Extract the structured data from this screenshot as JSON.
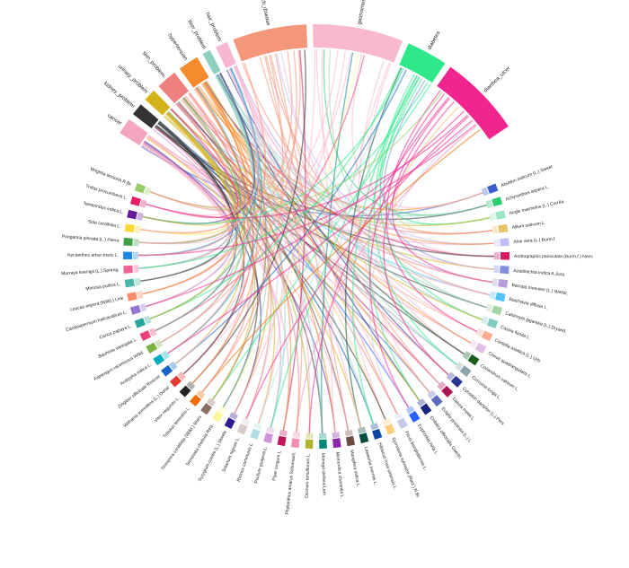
{
  "diseases": [
    {
      "label": "cancer",
      "color": "#f4a6c0",
      "degree": 4
    },
    {
      "label": "kidney_problem",
      "color": "#333333",
      "degree": 3
    },
    {
      "label": "urinary_problem",
      "color": "#d4b21a",
      "degree": 3
    },
    {
      "label": "skin_problem",
      "color": "#f08080",
      "degree": 5
    },
    {
      "label": "hypertension",
      "color": "#f58b2e",
      "degree": 5
    },
    {
      "label": "liver_problem",
      "color": "#8fcfc0",
      "degree": 2
    },
    {
      "label": "hair_problem",
      "color": "#f7b6d2",
      "degree": 3
    },
    {
      "label": "stomach_disease",
      "color": "#f4967a",
      "degree": 18
    },
    {
      "label": "gastrointestinal",
      "color": "#f9b8cc",
      "degree": 22
    },
    {
      "label": "diabetes",
      "color": "#2ee88a",
      "degree": 10
    },
    {
      "label": "diarrhea_ulcer",
      "color": "#f0268e",
      "degree": 20
    }
  ],
  "plants": [
    {
      "label": "Abutilon indicum (L.) Sweet",
      "color": "#3a5fcd"
    },
    {
      "label": "Achyranthes aspera L.",
      "color": "#2ecc71"
    },
    {
      "label": "Aegle marmelos (L.) Corrêa",
      "color": "#9be7c4"
    },
    {
      "label": "Allium sativum L.",
      "color": "#e8c26a"
    },
    {
      "label": "Aloe vera (L.) Burm.f.",
      "color": "#c0c0ff"
    },
    {
      "label": "Andrographis paniculata (Burm.f.) Nees",
      "color": "#d81b60"
    },
    {
      "label": "Azadirachta indica A.Juss.",
      "color": "#7f8fdc"
    },
    {
      "label": "Bacopa monnieri (L.) Wettst.",
      "color": "#b39ddb"
    },
    {
      "label": "Boerhavia diffusa L.",
      "color": "#4fc3f7"
    },
    {
      "label": "Calotropis gigantea (L.) Dryand.",
      "color": "#a5d6a7"
    },
    {
      "label": "Cassia fistula L.",
      "color": "#80cbc4"
    },
    {
      "label": "Centella asiatica (L.) Urb.",
      "color": "#ffab91"
    },
    {
      "label": "Cissus quadrangularis L.",
      "color": "#e1bee7"
    },
    {
      "label": "Coriandrum sativum L.",
      "color": "#1b5e20"
    },
    {
      "label": "Curcuma longa L.",
      "color": "#90a4ae"
    },
    {
      "label": "Cynodon dactylon (L.) Pers.",
      "color": "#283593"
    },
    {
      "label": "Datura metel L.",
      "color": "#ad1457"
    },
    {
      "label": "Eclipta prostrata (L.) L.",
      "color": "#5c6bc0"
    },
    {
      "label": "Emblica officinalis Gaertn.",
      "color": "#1a237e"
    },
    {
      "label": "Euphorbia hirta L.",
      "color": "#2962ff"
    },
    {
      "label": "Ficus benghalensis L.",
      "color": "#c5cae9"
    },
    {
      "label": "Gymnema sylvestre (Retz.) R.Br.",
      "color": "#ffcc80"
    },
    {
      "label": "Hibiscus rosa-sinensis L.",
      "color": "#0d47a1"
    },
    {
      "label": "Lawsonia inermis L.",
      "color": "#004d40"
    },
    {
      "label": "Mangifera indica L.",
      "color": "#6d4c41"
    },
    {
      "label": "Momordica charantia L.",
      "color": "#8e24aa"
    },
    {
      "label": "Moringa oleifera Lam.",
      "color": "#00897b"
    },
    {
      "label": "Ocimum tenuiflorum L.",
      "color": "#afb42b"
    },
    {
      "label": "Phyllanthus amarus Schumach.",
      "color": "#f48fb1"
    },
    {
      "label": "Piper longum L.",
      "color": "#c2185b"
    },
    {
      "label": "Psidium guajava L.",
      "color": "#ce93d8"
    },
    {
      "label": "Ricinus communis L.",
      "color": "#b0e0e6"
    },
    {
      "label": "Solanum nigrum L.",
      "color": "#d7ccc8"
    },
    {
      "label": "Syzygium cumini (L.) Skeels",
      "color": "#311b92"
    },
    {
      "label": "Terminalia chebula Retz.",
      "color": "#fff59d"
    },
    {
      "label": "Tinospora cordifolia (Willd.) Miers",
      "color": "#8d6e63"
    },
    {
      "label": "Tribulus terrestris L.",
      "color": "#ef6c00"
    },
    {
      "label": "Vitex negundo L.",
      "color": "#222222"
    },
    {
      "label": "Withania somnifera (L.) Dunal",
      "color": "#e53935"
    },
    {
      "label": "Zingiber officinale Roscoe",
      "color": "#1565c0"
    },
    {
      "label": "Acalypha indica L.",
      "color": "#00acc1"
    },
    {
      "label": "Asparagus racemosus Willd.",
      "color": "#7cb342"
    },
    {
      "label": "Bauhinia variegata L.",
      "color": "#ec407a"
    },
    {
      "label": "Carica papaya L.",
      "color": "#26a69a"
    },
    {
      "label": "Cardiospermum halicacabum L.",
      "color": "#9575cd"
    },
    {
      "label": "Leucas aspera (Willd.) Link",
      "color": "#ff8a65"
    },
    {
      "label": "Mimosa pudica L.",
      "color": "#4db6ac"
    },
    {
      "label": "Murraya koenigii (L.) Spreng.",
      "color": "#f06292"
    },
    {
      "label": "Nyctanthes arbor-tristis L.",
      "color": "#1e88e5"
    },
    {
      "label": "Pongamia pinnata (L.) Pierre",
      "color": "#43a047"
    },
    {
      "label": "Sida cordifolia L.",
      "color": "#fdd835"
    },
    {
      "label": "Tamarindus indica L.",
      "color": "#6a1b9a"
    },
    {
      "label": "Tridax procumbens L.",
      "color": "#e91e63"
    },
    {
      "label": "Wrightia tinctoria R.Br.",
      "color": "#9ccc65"
    }
  ]
}
